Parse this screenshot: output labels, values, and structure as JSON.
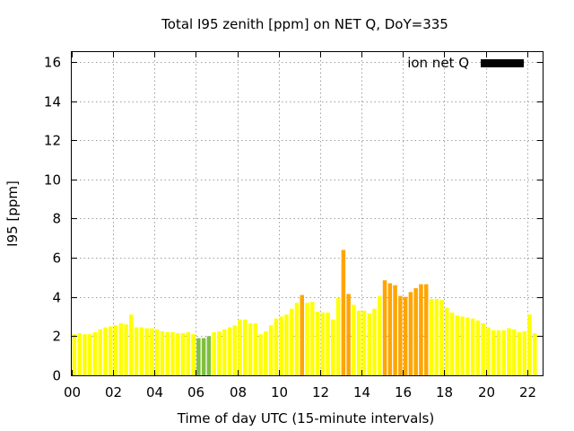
{
  "chart_data": {
    "type": "bar",
    "title": "Total I95 zenith [ppm] on NET Q, DoY=335",
    "xlabel": "Time of day UTC (15-minute intervals)",
    "ylabel": "I95 [ppm]",
    "xlim": [
      0,
      22.75
    ],
    "ylim": [
      0,
      16.5
    ],
    "x_ticks": [
      "00",
      "02",
      "04",
      "06",
      "08",
      "10",
      "12",
      "14",
      "16",
      "18",
      "20",
      "22"
    ],
    "x_tick_values": [
      0,
      2,
      4,
      6,
      8,
      10,
      12,
      14,
      16,
      18,
      20,
      22
    ],
    "y_ticks": [
      "0",
      "2",
      "4",
      "6",
      "8",
      "10",
      "12",
      "14",
      "16"
    ],
    "y_tick_values": [
      0,
      2,
      4,
      6,
      8,
      10,
      12,
      14,
      16
    ],
    "grid": true,
    "legend": {
      "label": "ion net Q",
      "color": "#000000",
      "placement": "top-right"
    },
    "colors": {
      "low": "#ffff00",
      "quiet": "#7fbf3f",
      "elevated": "#ffa500"
    },
    "bar_interval_hours": 0.25,
    "values": [
      2.1,
      2.15,
      2.1,
      2.1,
      2.2,
      2.35,
      2.45,
      2.5,
      2.55,
      2.65,
      2.6,
      3.1,
      2.45,
      2.45,
      2.4,
      2.4,
      2.35,
      2.25,
      2.2,
      2.2,
      2.15,
      2.15,
      2.2,
      2.1,
      1.9,
      1.9,
      2.0,
      2.2,
      2.25,
      2.35,
      2.45,
      2.55,
      2.85,
      2.85,
      2.65,
      2.65,
      2.1,
      2.25,
      2.55,
      2.9,
      3.0,
      3.1,
      3.4,
      3.7,
      4.1,
      3.7,
      3.75,
      3.25,
      3.2,
      3.2,
      2.85,
      3.95,
      6.4,
      4.15,
      3.6,
      3.3,
      3.3,
      3.15,
      3.4,
      4.05,
      4.85,
      4.7,
      4.6,
      4.05,
      4.0,
      4.25,
      4.45,
      4.65,
      4.65,
      3.9,
      3.9,
      3.85,
      3.45,
      3.2,
      3.05,
      3.0,
      2.95,
      2.9,
      2.8,
      2.65,
      2.45,
      2.3,
      2.3,
      2.3,
      2.4,
      2.35,
      2.2,
      2.25,
      3.1,
      2.15
    ],
    "bar_colors": [
      "#ffff00",
      "#ffff00",
      "#ffff00",
      "#ffff00",
      "#ffff00",
      "#ffff00",
      "#ffff00",
      "#ffff00",
      "#ffff00",
      "#ffff00",
      "#ffff00",
      "#ffff00",
      "#ffff00",
      "#ffff00",
      "#ffff00",
      "#ffff00",
      "#ffff00",
      "#ffff00",
      "#ffff00",
      "#ffff00",
      "#ffff00",
      "#ffff00",
      "#ffff00",
      "#ffff00",
      "#7fbf3f",
      "#7fbf3f",
      "#7fbf3f",
      "#ffff00",
      "#ffff00",
      "#ffff00",
      "#ffff00",
      "#ffff00",
      "#ffff00",
      "#ffff00",
      "#ffff00",
      "#ffff00",
      "#ffff00",
      "#ffff00",
      "#ffff00",
      "#ffff00",
      "#ffff00",
      "#ffff00",
      "#ffff00",
      "#ffff00",
      "#ffa500",
      "#ffff00",
      "#ffff00",
      "#ffff00",
      "#ffff00",
      "#ffff00",
      "#ffff00",
      "#ffff00",
      "#ffa500",
      "#ffa500",
      "#ffff00",
      "#ffff00",
      "#ffff00",
      "#ffff00",
      "#ffff00",
      "#ffff00",
      "#ffa500",
      "#ffa500",
      "#ffa500",
      "#ffa500",
      "#ffa500",
      "#ffa500",
      "#ffa500",
      "#ffa500",
      "#ffa500",
      "#ffff00",
      "#ffff00",
      "#ffff00",
      "#ffff00",
      "#ffff00",
      "#ffff00",
      "#ffff00",
      "#ffff00",
      "#ffff00",
      "#ffff00",
      "#ffff00",
      "#ffff00",
      "#ffff00",
      "#ffff00",
      "#ffff00",
      "#ffff00",
      "#ffff00",
      "#ffff00",
      "#ffff00",
      "#ffff00",
      "#ffff00"
    ]
  }
}
